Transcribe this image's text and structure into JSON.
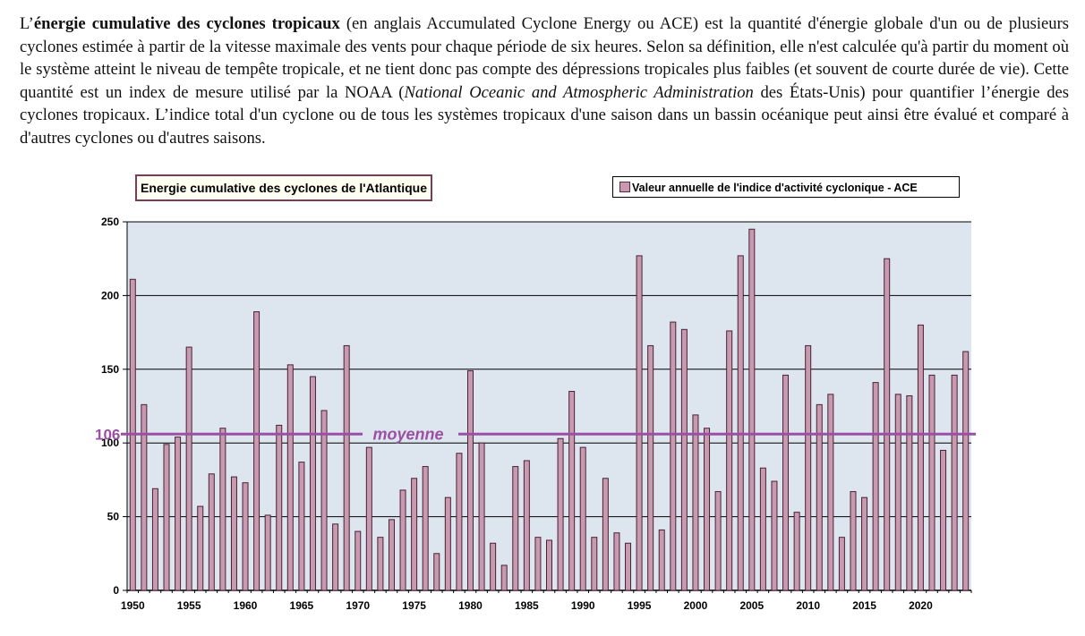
{
  "paragraph": {
    "p1": "L’",
    "bold": "énergie cumulative des cyclones tropicaux",
    "p2": " (en anglais Accumulated Cyclone Energy ou ACE) est la quantité d'énergie globale d'un ou de plusieurs cyclones estimée à partir de la vitesse maximale des vents pour chaque période de six heures. Selon sa définition, elle n'est calculée qu'à partir du moment où le système atteint le niveau de tempête tropicale, et ne tient donc pas compte des dépressions tropicales plus faibles (et souvent de courte durée de vie). Cette quantité est un index de mesure utilisé par la NOAA (",
    "italic": "National Oceanic and Atmospheric Administration",
    "p3": " des États-Unis) pour quantifier l’énergie des cyclones tropicaux. L’indice total d'un cyclone ou de tous les systèmes tropicaux d'une saison dans un bassin océanique peut ainsi être évalué et comparé à d'autres cyclones ou d'autres saisons."
  },
  "chart_data": {
    "type": "bar",
    "title": "Energie cumulative des cyclones de l'Atlantique",
    "legend": "Valeur annuelle de l'indice d'activité cyclonique - ACE",
    "x_start": 1950,
    "x_end": 2024,
    "x_ticks": [
      1950,
      1955,
      1960,
      1965,
      1970,
      1975,
      1980,
      1985,
      1990,
      1995,
      2000,
      2005,
      2010,
      2015,
      2020
    ],
    "y_ticks": [
      0,
      50,
      100,
      150,
      200,
      250
    ],
    "ylim": [
      0,
      250
    ],
    "grid": true,
    "values": [
      211,
      126,
      69,
      99,
      104,
      165,
      57,
      79,
      110,
      77,
      73,
      189,
      51,
      112,
      153,
      87,
      145,
      122,
      45,
      166,
      40,
      97,
      36,
      48,
      68,
      76,
      84,
      25,
      63,
      93,
      149,
      100,
      32,
      17,
      84,
      88,
      36,
      34,
      103,
      135,
      97,
      36,
      76,
      39,
      32,
      227,
      166,
      41,
      182,
      177,
      119,
      110,
      67,
      176,
      227,
      245,
      83,
      74,
      146,
      53,
      166,
      126,
      133,
      36,
      67,
      63,
      141,
      225,
      133,
      132,
      180,
      146,
      95,
      146,
      162
    ],
    "mean_value": 106,
    "mean_value_label": "106",
    "mean_label": "moyenne",
    "colors": {
      "bar_fill": "#c79ab0",
      "bar_stroke": "#4a2035",
      "plot_bg": "#dde6ef",
      "mean_line": "#9b4fa5",
      "title_border": "#7d3a5a"
    }
  }
}
